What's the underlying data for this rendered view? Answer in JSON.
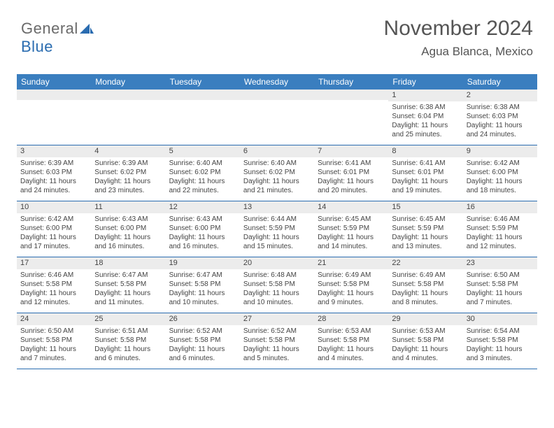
{
  "logo": {
    "text1": "General",
    "text2": "Blue",
    "icon_color": "#2a6cb0"
  },
  "header": {
    "month_title": "November 2024",
    "location": "Agua Blanca, Mexico"
  },
  "colors": {
    "header_bg": "#3a7ebf",
    "header_text": "#ffffff",
    "daynum_bg": "#ececec",
    "border": "#2a6cb0",
    "body_text": "#444444"
  },
  "dow": [
    "Sunday",
    "Monday",
    "Tuesday",
    "Wednesday",
    "Thursday",
    "Friday",
    "Saturday"
  ],
  "weeks": [
    [
      {
        "n": "",
        "sr": "",
        "ss": "",
        "dl": ""
      },
      {
        "n": "",
        "sr": "",
        "ss": "",
        "dl": ""
      },
      {
        "n": "",
        "sr": "",
        "ss": "",
        "dl": ""
      },
      {
        "n": "",
        "sr": "",
        "ss": "",
        "dl": ""
      },
      {
        "n": "",
        "sr": "",
        "ss": "",
        "dl": ""
      },
      {
        "n": "1",
        "sr": "Sunrise: 6:38 AM",
        "ss": "Sunset: 6:04 PM",
        "dl": "Daylight: 11 hours and 25 minutes."
      },
      {
        "n": "2",
        "sr": "Sunrise: 6:38 AM",
        "ss": "Sunset: 6:03 PM",
        "dl": "Daylight: 11 hours and 24 minutes."
      }
    ],
    [
      {
        "n": "3",
        "sr": "Sunrise: 6:39 AM",
        "ss": "Sunset: 6:03 PM",
        "dl": "Daylight: 11 hours and 24 minutes."
      },
      {
        "n": "4",
        "sr": "Sunrise: 6:39 AM",
        "ss": "Sunset: 6:02 PM",
        "dl": "Daylight: 11 hours and 23 minutes."
      },
      {
        "n": "5",
        "sr": "Sunrise: 6:40 AM",
        "ss": "Sunset: 6:02 PM",
        "dl": "Daylight: 11 hours and 22 minutes."
      },
      {
        "n": "6",
        "sr": "Sunrise: 6:40 AM",
        "ss": "Sunset: 6:02 PM",
        "dl": "Daylight: 11 hours and 21 minutes."
      },
      {
        "n": "7",
        "sr": "Sunrise: 6:41 AM",
        "ss": "Sunset: 6:01 PM",
        "dl": "Daylight: 11 hours and 20 minutes."
      },
      {
        "n": "8",
        "sr": "Sunrise: 6:41 AM",
        "ss": "Sunset: 6:01 PM",
        "dl": "Daylight: 11 hours and 19 minutes."
      },
      {
        "n": "9",
        "sr": "Sunrise: 6:42 AM",
        "ss": "Sunset: 6:00 PM",
        "dl": "Daylight: 11 hours and 18 minutes."
      }
    ],
    [
      {
        "n": "10",
        "sr": "Sunrise: 6:42 AM",
        "ss": "Sunset: 6:00 PM",
        "dl": "Daylight: 11 hours and 17 minutes."
      },
      {
        "n": "11",
        "sr": "Sunrise: 6:43 AM",
        "ss": "Sunset: 6:00 PM",
        "dl": "Daylight: 11 hours and 16 minutes."
      },
      {
        "n": "12",
        "sr": "Sunrise: 6:43 AM",
        "ss": "Sunset: 6:00 PM",
        "dl": "Daylight: 11 hours and 16 minutes."
      },
      {
        "n": "13",
        "sr": "Sunrise: 6:44 AM",
        "ss": "Sunset: 5:59 PM",
        "dl": "Daylight: 11 hours and 15 minutes."
      },
      {
        "n": "14",
        "sr": "Sunrise: 6:45 AM",
        "ss": "Sunset: 5:59 PM",
        "dl": "Daylight: 11 hours and 14 minutes."
      },
      {
        "n": "15",
        "sr": "Sunrise: 6:45 AM",
        "ss": "Sunset: 5:59 PM",
        "dl": "Daylight: 11 hours and 13 minutes."
      },
      {
        "n": "16",
        "sr": "Sunrise: 6:46 AM",
        "ss": "Sunset: 5:59 PM",
        "dl": "Daylight: 11 hours and 12 minutes."
      }
    ],
    [
      {
        "n": "17",
        "sr": "Sunrise: 6:46 AM",
        "ss": "Sunset: 5:58 PM",
        "dl": "Daylight: 11 hours and 12 minutes."
      },
      {
        "n": "18",
        "sr": "Sunrise: 6:47 AM",
        "ss": "Sunset: 5:58 PM",
        "dl": "Daylight: 11 hours and 11 minutes."
      },
      {
        "n": "19",
        "sr": "Sunrise: 6:47 AM",
        "ss": "Sunset: 5:58 PM",
        "dl": "Daylight: 11 hours and 10 minutes."
      },
      {
        "n": "20",
        "sr": "Sunrise: 6:48 AM",
        "ss": "Sunset: 5:58 PM",
        "dl": "Daylight: 11 hours and 10 minutes."
      },
      {
        "n": "21",
        "sr": "Sunrise: 6:49 AM",
        "ss": "Sunset: 5:58 PM",
        "dl": "Daylight: 11 hours and 9 minutes."
      },
      {
        "n": "22",
        "sr": "Sunrise: 6:49 AM",
        "ss": "Sunset: 5:58 PM",
        "dl": "Daylight: 11 hours and 8 minutes."
      },
      {
        "n": "23",
        "sr": "Sunrise: 6:50 AM",
        "ss": "Sunset: 5:58 PM",
        "dl": "Daylight: 11 hours and 7 minutes."
      }
    ],
    [
      {
        "n": "24",
        "sr": "Sunrise: 6:50 AM",
        "ss": "Sunset: 5:58 PM",
        "dl": "Daylight: 11 hours and 7 minutes."
      },
      {
        "n": "25",
        "sr": "Sunrise: 6:51 AM",
        "ss": "Sunset: 5:58 PM",
        "dl": "Daylight: 11 hours and 6 minutes."
      },
      {
        "n": "26",
        "sr": "Sunrise: 6:52 AM",
        "ss": "Sunset: 5:58 PM",
        "dl": "Daylight: 11 hours and 6 minutes."
      },
      {
        "n": "27",
        "sr": "Sunrise: 6:52 AM",
        "ss": "Sunset: 5:58 PM",
        "dl": "Daylight: 11 hours and 5 minutes."
      },
      {
        "n": "28",
        "sr": "Sunrise: 6:53 AM",
        "ss": "Sunset: 5:58 PM",
        "dl": "Daylight: 11 hours and 4 minutes."
      },
      {
        "n": "29",
        "sr": "Sunrise: 6:53 AM",
        "ss": "Sunset: 5:58 PM",
        "dl": "Daylight: 11 hours and 4 minutes."
      },
      {
        "n": "30",
        "sr": "Sunrise: 6:54 AM",
        "ss": "Sunset: 5:58 PM",
        "dl": "Daylight: 11 hours and 3 minutes."
      }
    ]
  ]
}
